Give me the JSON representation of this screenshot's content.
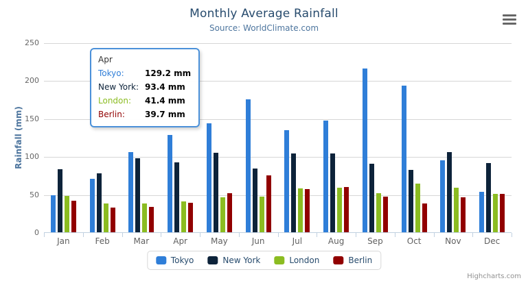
{
  "credit": {
    "label": "Highcharts.com"
  },
  "menu": {
    "icon": "hamburger-icon"
  },
  "chart_data": {
    "type": "bar",
    "title": "Monthly Average Rainfall",
    "subtitle": "Source: WorldClimate.com",
    "ylabel": "Rainfall (mm)",
    "xlabel": "",
    "categories": [
      "Jan",
      "Feb",
      "Mar",
      "Apr",
      "May",
      "Jun",
      "Jul",
      "Aug",
      "Sep",
      "Oct",
      "Nov",
      "Dec"
    ],
    "series": [
      {
        "name": "Tokyo",
        "color": "#2f7ed8",
        "values": [
          49.9,
          71.5,
          106.4,
          129.2,
          144.0,
          176.0,
          135.6,
          148.5,
          216.4,
          194.1,
          95.6,
          54.4
        ]
      },
      {
        "name": "New York",
        "color": "#0d233a",
        "values": [
          83.6,
          78.8,
          98.5,
          93.4,
          106.0,
          84.5,
          105.0,
          104.3,
          91.2,
          83.5,
          106.6,
          92.3
        ]
      },
      {
        "name": "London",
        "color": "#8bbc21",
        "values": [
          48.9,
          38.8,
          39.3,
          41.4,
          47.0,
          48.3,
          59.0,
          59.6,
          52.4,
          65.2,
          59.3,
          51.2
        ]
      },
      {
        "name": "Berlin",
        "color": "#910000",
        "values": [
          42.4,
          33.2,
          34.5,
          39.7,
          52.6,
          75.5,
          57.4,
          60.4,
          47.6,
          39.1,
          46.8,
          51.1
        ]
      }
    ],
    "yticks": [
      0,
      50,
      100,
      150,
      200,
      250
    ],
    "ylim": [
      0,
      250
    ],
    "grid": "horizontal",
    "legend_position": "bottom",
    "colors": {
      "title_text": "#274b6d",
      "subtitle_text": "#4d759e",
      "y_title_text": "#4d759e",
      "axis_tick_text": "#666666",
      "axis_line": "#c0d0e0",
      "grid_line": "#d6d6d6",
      "legend_text": "#274b6d",
      "credit_text": "#909090"
    }
  },
  "tooltip": {
    "header": "Apr",
    "border_color": "#4a90d9",
    "rows": [
      {
        "label": "Tokyo:",
        "value": "129.2 mm",
        "color": "#2f7ed8"
      },
      {
        "label": "New York:",
        "value": "93.4 mm",
        "color": "#0d233a"
      },
      {
        "label": "London:",
        "value": "41.4 mm",
        "color": "#8bbc21"
      },
      {
        "label": "Berlin:",
        "value": "39.7 mm",
        "color": "#910000"
      }
    ]
  }
}
